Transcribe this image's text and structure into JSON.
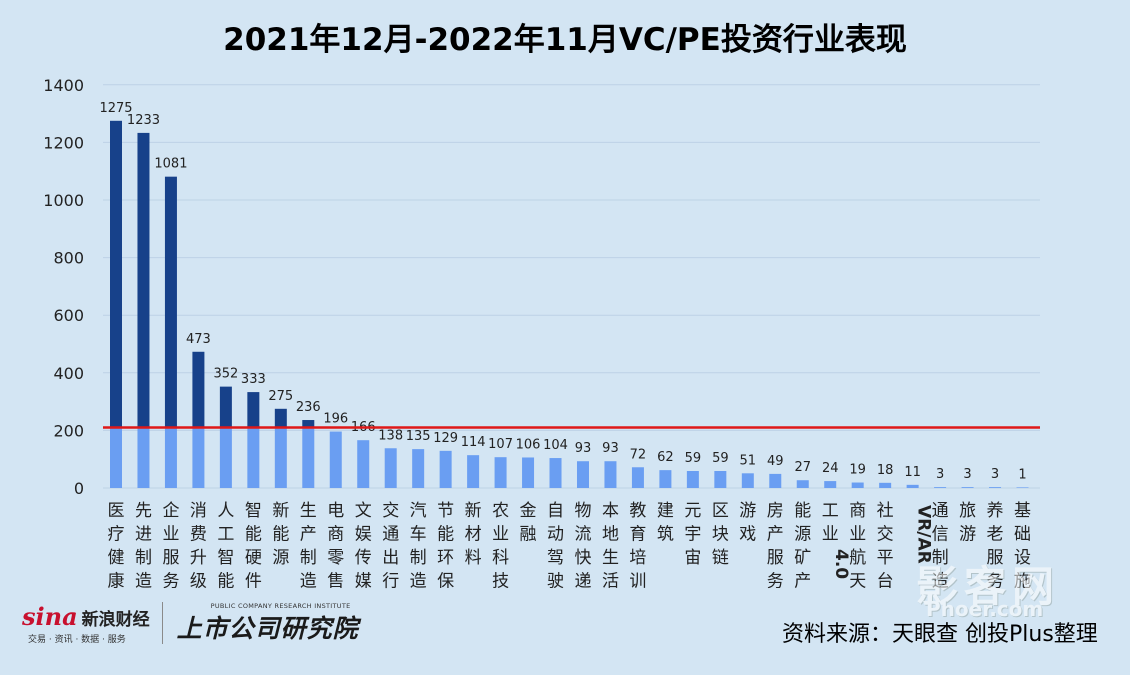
{
  "chart_data": {
    "type": "bar",
    "title": "2021年12月-2022年11月VC/PE投资行业表现",
    "categories": [
      "医疗健康",
      "先进制造",
      "企业服务",
      "消费升级",
      "人工智能",
      "智能硬件",
      "新能源",
      "生产制造",
      "电商零售",
      "文娱传媒",
      "交通出行",
      "汽车制造",
      "节能环保",
      "新材料",
      "农业科技",
      "金融",
      "自动驾驶",
      "物流快递",
      "本地生活",
      "教育培训",
      "建筑",
      "元宇宙",
      "区块链",
      "游戏",
      "房产服务",
      "能源矿产",
      "工业4.0",
      "商业航天",
      "社交平台",
      "VR/AR",
      "通信制造",
      "旅游",
      "养老服务",
      "基础设施"
    ],
    "values": [
      1275,
      1233,
      1081,
      473,
      352,
      333,
      275,
      236,
      196,
      166,
      138,
      135,
      129,
      114,
      107,
      106,
      104,
      93,
      93,
      72,
      62,
      59,
      59,
      51,
      49,
      27,
      24,
      19,
      18,
      11,
      3,
      3,
      3,
      1
    ],
    "yticks": [
      0,
      200,
      400,
      600,
      800,
      1000,
      1200,
      1400
    ],
    "ylim": [
      0,
      1400
    ],
    "threshold": 210,
    "colors": {
      "bar_top": "#17418a",
      "bar_bottom": "#6a9ef2",
      "threshold_line": "#e01818",
      "background": "#d3e5f3"
    },
    "grid": true,
    "legend": "none"
  },
  "logos": {
    "sina_word": "sina",
    "sina_cn": "新浪财经",
    "sina_sub": "交易 · 资讯 · 数据 · 服务",
    "inst_en": "PUBLIC COMPANY RESEARCH INSTITUTE",
    "inst_cn": "上市公司研究院"
  },
  "source": "资料来源：天眼查 创投Plus整理",
  "watermark": {
    "cn": "影客网",
    "en": "Phoer.com"
  }
}
